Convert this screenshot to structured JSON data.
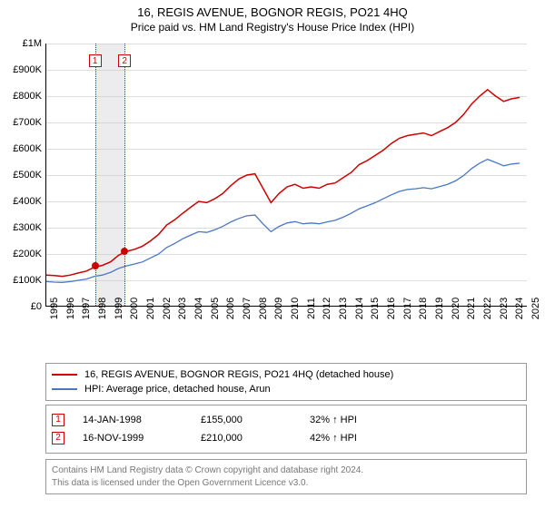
{
  "title": "16, REGIS AVENUE, BOGNOR REGIS, PO21 4HQ",
  "subtitle": "Price paid vs. HM Land Registry's House Price Index (HPI)",
  "chart": {
    "type": "line",
    "background_color": "#ffffff",
    "grid_color": "#dddddd",
    "ylim": [
      0,
      1000000
    ],
    "ytick_step": 100000,
    "ytick_labels": [
      "£0",
      "£100K",
      "£200K",
      "£300K",
      "£400K",
      "£500K",
      "£600K",
      "£700K",
      "£800K",
      "£900K",
      "£1M"
    ],
    "xlim": [
      1995,
      2025
    ],
    "xtick_labels": [
      "1995",
      "1996",
      "1997",
      "1998",
      "1999",
      "2000",
      "2001",
      "2002",
      "2003",
      "2004",
      "2005",
      "2006",
      "2007",
      "2008",
      "2009",
      "2010",
      "2011",
      "2012",
      "2013",
      "2014",
      "2015",
      "2016",
      "2017",
      "2018",
      "2019",
      "2020",
      "2021",
      "2022",
      "2023",
      "2024",
      "2025"
    ],
    "label_fontsize": 11,
    "series": [
      {
        "name": "property",
        "color": "#cc0000",
        "line_width": 1.5,
        "data": [
          [
            1995,
            120000
          ],
          [
            1995.5,
            118000
          ],
          [
            1996,
            115000
          ],
          [
            1996.5,
            120000
          ],
          [
            1997,
            128000
          ],
          [
            1997.5,
            135000
          ],
          [
            1998,
            150000
          ],
          [
            1998.5,
            157000
          ],
          [
            1999,
            170000
          ],
          [
            1999.5,
            195000
          ],
          [
            2000,
            210000
          ],
          [
            2000.5,
            218000
          ],
          [
            2001,
            230000
          ],
          [
            2001.5,
            250000
          ],
          [
            2002,
            275000
          ],
          [
            2002.5,
            310000
          ],
          [
            2003,
            330000
          ],
          [
            2003.5,
            355000
          ],
          [
            2004,
            378000
          ],
          [
            2004.5,
            400000
          ],
          [
            2005,
            395000
          ],
          [
            2005.5,
            410000
          ],
          [
            2006,
            430000
          ],
          [
            2006.5,
            460000
          ],
          [
            2007,
            485000
          ],
          [
            2007.5,
            500000
          ],
          [
            2008,
            505000
          ],
          [
            2008.5,
            450000
          ],
          [
            2009,
            395000
          ],
          [
            2009.5,
            430000
          ],
          [
            2010,
            455000
          ],
          [
            2010.5,
            465000
          ],
          [
            2011,
            450000
          ],
          [
            2011.5,
            455000
          ],
          [
            2012,
            450000
          ],
          [
            2012.5,
            465000
          ],
          [
            2013,
            470000
          ],
          [
            2013.5,
            490000
          ],
          [
            2014,
            510000
          ],
          [
            2014.5,
            540000
          ],
          [
            2015,
            555000
          ],
          [
            2015.5,
            575000
          ],
          [
            2016,
            595000
          ],
          [
            2016.5,
            620000
          ],
          [
            2017,
            640000
          ],
          [
            2017.5,
            650000
          ],
          [
            2018,
            655000
          ],
          [
            2018.5,
            660000
          ],
          [
            2019,
            650000
          ],
          [
            2019.5,
            665000
          ],
          [
            2020,
            680000
          ],
          [
            2020.5,
            700000
          ],
          [
            2021,
            730000
          ],
          [
            2021.5,
            770000
          ],
          [
            2022,
            800000
          ],
          [
            2022.5,
            825000
          ],
          [
            2023,
            800000
          ],
          [
            2023.5,
            780000
          ],
          [
            2024,
            790000
          ],
          [
            2024.5,
            795000
          ]
        ]
      },
      {
        "name": "hpi",
        "color": "#4a77c4",
        "line_width": 1.3,
        "data": [
          [
            1995,
            95000
          ],
          [
            1995.5,
            93000
          ],
          [
            1996,
            92000
          ],
          [
            1996.5,
            95000
          ],
          [
            1997,
            100000
          ],
          [
            1997.5,
            105000
          ],
          [
            1998,
            115000
          ],
          [
            1998.5,
            120000
          ],
          [
            1999,
            130000
          ],
          [
            1999.5,
            145000
          ],
          [
            2000,
            155000
          ],
          [
            2000.5,
            162000
          ],
          [
            2001,
            170000
          ],
          [
            2001.5,
            185000
          ],
          [
            2002,
            200000
          ],
          [
            2002.5,
            225000
          ],
          [
            2003,
            240000
          ],
          [
            2003.5,
            258000
          ],
          [
            2004,
            272000
          ],
          [
            2004.5,
            285000
          ],
          [
            2005,
            282000
          ],
          [
            2005.5,
            292000
          ],
          [
            2006,
            305000
          ],
          [
            2006.5,
            322000
          ],
          [
            2007,
            335000
          ],
          [
            2007.5,
            345000
          ],
          [
            2008,
            348000
          ],
          [
            2008.5,
            315000
          ],
          [
            2009,
            285000
          ],
          [
            2009.5,
            305000
          ],
          [
            2010,
            318000
          ],
          [
            2010.5,
            323000
          ],
          [
            2011,
            315000
          ],
          [
            2011.5,
            318000
          ],
          [
            2012,
            315000
          ],
          [
            2012.5,
            322000
          ],
          [
            2013,
            328000
          ],
          [
            2013.5,
            340000
          ],
          [
            2014,
            355000
          ],
          [
            2014.5,
            372000
          ],
          [
            2015,
            383000
          ],
          [
            2015.5,
            395000
          ],
          [
            2016,
            410000
          ],
          [
            2016.5,
            425000
          ],
          [
            2017,
            438000
          ],
          [
            2017.5,
            445000
          ],
          [
            2018,
            448000
          ],
          [
            2018.5,
            452000
          ],
          [
            2019,
            448000
          ],
          [
            2019.5,
            456000
          ],
          [
            2020,
            465000
          ],
          [
            2020.5,
            478000
          ],
          [
            2021,
            498000
          ],
          [
            2021.5,
            525000
          ],
          [
            2022,
            545000
          ],
          [
            2022.5,
            560000
          ],
          [
            2023,
            548000
          ],
          [
            2023.5,
            535000
          ],
          [
            2024,
            542000
          ],
          [
            2024.5,
            545000
          ]
        ]
      }
    ],
    "sale_band": {
      "start": 1998.04,
      "end": 1999.88,
      "color": "rgba(200,200,210,0.35)",
      "border_color": "#cc0000"
    },
    "sale_markers": [
      {
        "n": "1",
        "x": 1998.04,
        "y": 155000
      },
      {
        "n": "2",
        "x": 1999.88,
        "y": 210000
      }
    ]
  },
  "legend": {
    "rows": [
      {
        "color": "#cc0000",
        "label": "16, REGIS AVENUE, BOGNOR REGIS, PO21 4HQ (detached house)"
      },
      {
        "color": "#4a77c4",
        "label": "HPI: Average price, detached house, Arun"
      }
    ]
  },
  "transactions": [
    {
      "n": "1",
      "date": "14-JAN-1998",
      "price": "£155,000",
      "pct": "32% ↑ HPI"
    },
    {
      "n": "2",
      "date": "16-NOV-1999",
      "price": "£210,000",
      "pct": "42% ↑ HPI"
    }
  ],
  "footer": {
    "line1": "Contains HM Land Registry data © Crown copyright and database right 2024.",
    "line2": "This data is licensed under the Open Government Licence v3.0."
  }
}
